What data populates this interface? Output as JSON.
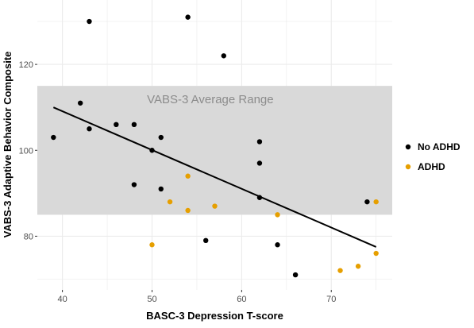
{
  "chart_data": {
    "type": "scatter",
    "title": "",
    "xlabel": "BASC-3 Depression T-score",
    "ylabel": "VABS-3 Adaptive Behavior Composite",
    "xlim": [
      37.2,
      76.8
    ],
    "ylim": [
      67.5,
      135
    ],
    "x_ticks": [
      40,
      50,
      60,
      70
    ],
    "y_ticks": [
      80,
      100,
      120
    ],
    "grid": true,
    "legend_position": "right",
    "colors": {
      "panel_background": "#ffffff",
      "grid": "#ebebeb",
      "band": "#d9d9d9",
      "band_text": "#8c8c8c",
      "fit_line": "#000000"
    },
    "band": {
      "label": "VABS-3 Average Range",
      "ymin": 85,
      "ymax": 115
    },
    "fit_line": {
      "x": [
        39,
        75
      ],
      "y": [
        110,
        77.5
      ]
    },
    "series": [
      {
        "name": "No ADHD",
        "color": "#000000",
        "points": [
          {
            "x": 39,
            "y": 103
          },
          {
            "x": 42,
            "y": 111
          },
          {
            "x": 43,
            "y": 105
          },
          {
            "x": 43,
            "y": 130
          },
          {
            "x": 46,
            "y": 106
          },
          {
            "x": 48,
            "y": 106
          },
          {
            "x": 48,
            "y": 92
          },
          {
            "x": 50,
            "y": 100
          },
          {
            "x": 51,
            "y": 103
          },
          {
            "x": 51,
            "y": 91
          },
          {
            "x": 54,
            "y": 131
          },
          {
            "x": 56,
            "y": 79
          },
          {
            "x": 58,
            "y": 122
          },
          {
            "x": 62,
            "y": 102
          },
          {
            "x": 62,
            "y": 97
          },
          {
            "x": 62,
            "y": 89
          },
          {
            "x": 64,
            "y": 78
          },
          {
            "x": 66,
            "y": 71
          },
          {
            "x": 74,
            "y": 88
          }
        ]
      },
      {
        "name": "ADHD",
        "color": "#E69F00",
        "points": [
          {
            "x": 50,
            "y": 78
          },
          {
            "x": 52,
            "y": 88
          },
          {
            "x": 54,
            "y": 94
          },
          {
            "x": 54,
            "y": 86
          },
          {
            "x": 57,
            "y": 87
          },
          {
            "x": 64,
            "y": 85
          },
          {
            "x": 71,
            "y": 72
          },
          {
            "x": 73,
            "y": 73
          },
          {
            "x": 75,
            "y": 76
          },
          {
            "x": 75,
            "y": 88
          }
        ]
      }
    ]
  }
}
